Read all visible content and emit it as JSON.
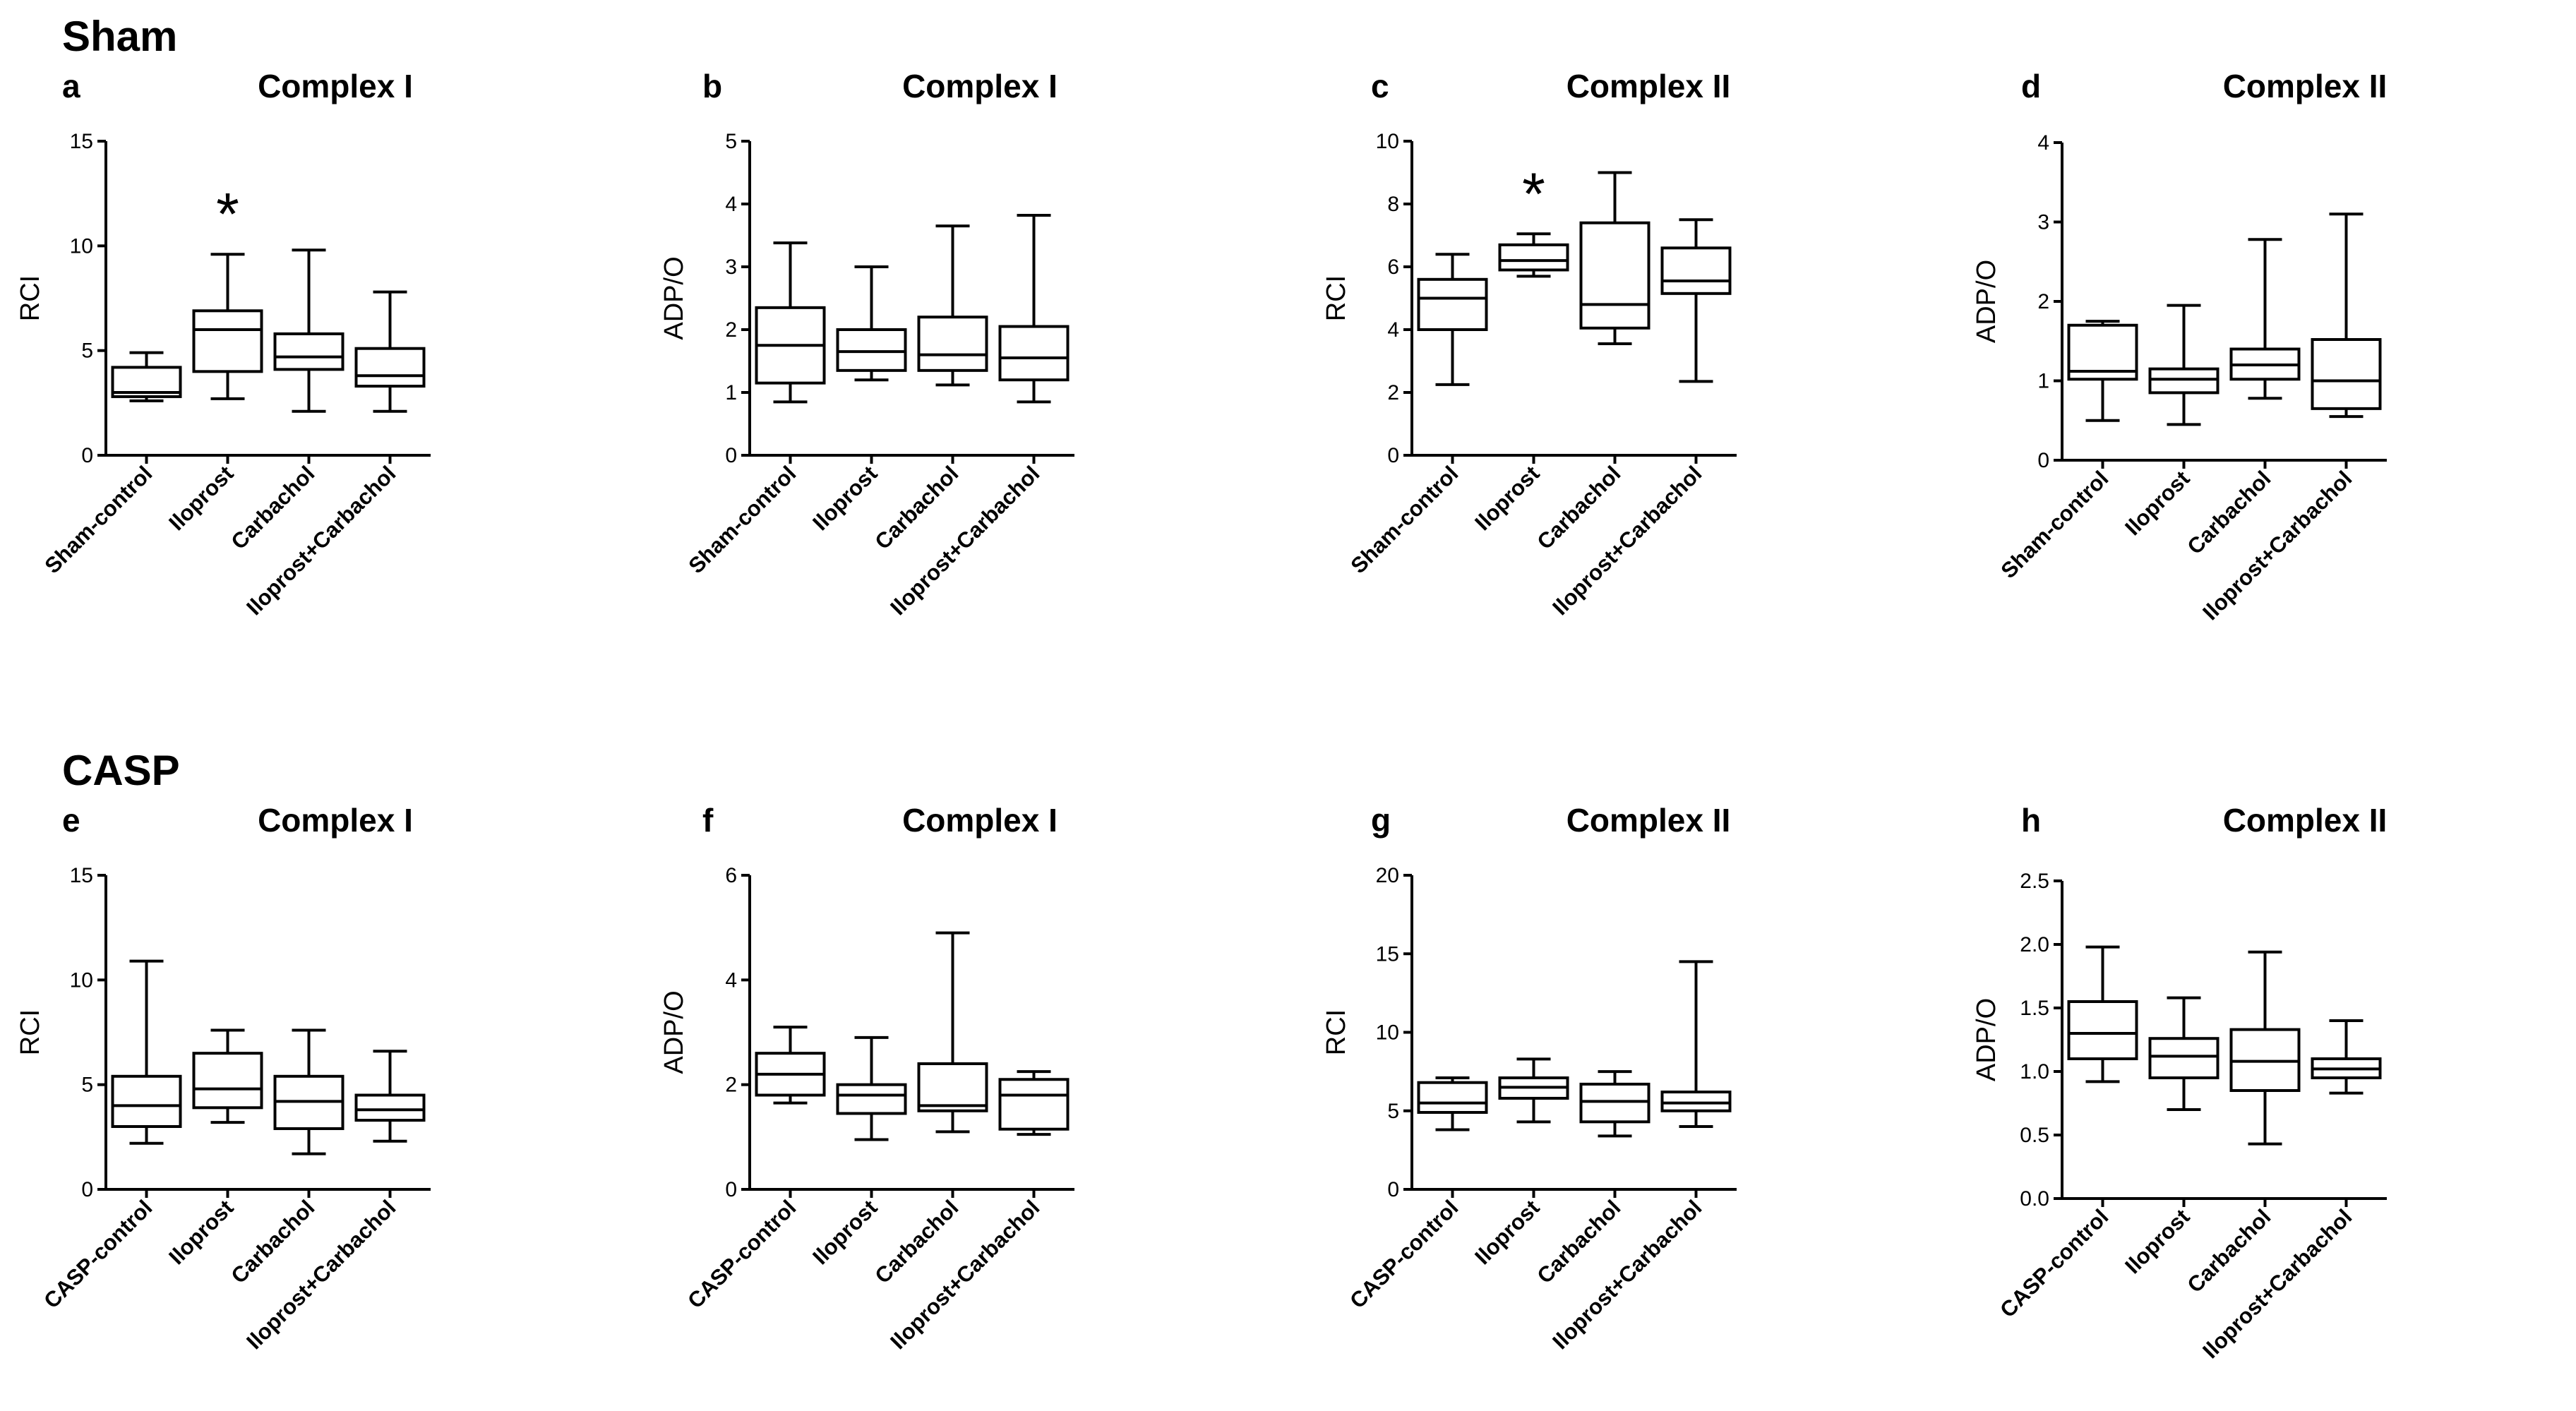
{
  "sections": [
    {
      "label": "Sham"
    },
    {
      "label": "CASP"
    }
  ],
  "chart_data": [
    {
      "panel": "a",
      "type": "boxplot",
      "title": "Complex I",
      "xlabel": "",
      "ylabel": "RCI",
      "ylim": [
        0,
        15
      ],
      "yticks": [
        "0",
        "5",
        "10",
        "15"
      ],
      "categories": [
        "Sham-control",
        "Iloprost",
        "Carbachol",
        "Iloprost+Carbachol"
      ],
      "boxes": [
        {
          "min": 2.6,
          "q1": 2.8,
          "median": 3.0,
          "q3": 4.2,
          "max": 4.9
        },
        {
          "min": 2.7,
          "q1": 4.0,
          "median": 6.0,
          "q3": 6.9,
          "max": 9.6
        },
        {
          "min": 2.1,
          "q1": 4.1,
          "median": 4.7,
          "q3": 5.8,
          "max": 9.8
        },
        {
          "min": 2.1,
          "q1": 3.3,
          "median": 3.8,
          "q3": 5.1,
          "max": 7.8
        }
      ],
      "significance": [
        "",
        "*",
        "",
        ""
      ]
    },
    {
      "panel": "b",
      "type": "boxplot",
      "title": "Complex I",
      "xlabel": "",
      "ylabel": "ADP/O",
      "ylim": [
        0,
        5
      ],
      "yticks": [
        "0",
        "1",
        "2",
        "3",
        "4",
        "5"
      ],
      "categories": [
        "Sham-control",
        "Iloprost",
        "Carbachol",
        "Iloprost+Carbachol"
      ],
      "boxes": [
        {
          "min": 0.85,
          "q1": 1.15,
          "median": 1.75,
          "q3": 2.35,
          "max": 3.38
        },
        {
          "min": 1.2,
          "q1": 1.35,
          "median": 1.65,
          "q3": 2.0,
          "max": 3.0
        },
        {
          "min": 1.12,
          "q1": 1.35,
          "median": 1.6,
          "q3": 2.2,
          "max": 3.65
        },
        {
          "min": 0.85,
          "q1": 1.2,
          "median": 1.55,
          "q3": 2.05,
          "max": 3.82
        }
      ],
      "significance": [
        "",
        "",
        "",
        ""
      ]
    },
    {
      "panel": "c",
      "type": "boxplot",
      "title": "Complex II",
      "xlabel": "",
      "ylabel": "RCI",
      "ylim": [
        0,
        10
      ],
      "yticks": [
        "0",
        "2",
        "4",
        "6",
        "8",
        "10"
      ],
      "categories": [
        "Sham-control",
        "Iloprost",
        "Carbachol",
        "Iloprost+Carbachol"
      ],
      "boxes": [
        {
          "min": 2.25,
          "q1": 4.0,
          "median": 5.0,
          "q3": 5.6,
          "max": 6.4
        },
        {
          "min": 5.7,
          "q1": 5.9,
          "median": 6.2,
          "q3": 6.7,
          "max": 7.05
        },
        {
          "min": 3.55,
          "q1": 4.05,
          "median": 4.8,
          "q3": 7.4,
          "max": 9.0
        },
        {
          "min": 2.35,
          "q1": 5.15,
          "median": 5.55,
          "q3": 6.6,
          "max": 7.5
        }
      ],
      "significance": [
        "",
        "*",
        "",
        ""
      ]
    },
    {
      "panel": "d",
      "type": "boxplot",
      "title": "Complex II",
      "xlabel": "",
      "ylabel": "ADP/O",
      "ylim": [
        0,
        4
      ],
      "yticks": [
        "0",
        "1",
        "2",
        "3",
        "4"
      ],
      "categories": [
        "Sham-control",
        "Iloprost",
        "Carbachol",
        "Iloprost+Carbachol"
      ],
      "boxes": [
        {
          "min": 0.5,
          "q1": 1.02,
          "median": 1.12,
          "q3": 1.7,
          "max": 1.75
        },
        {
          "min": 0.45,
          "q1": 0.85,
          "median": 1.02,
          "q3": 1.15,
          "max": 1.95
        },
        {
          "min": 0.78,
          "q1": 1.02,
          "median": 1.2,
          "q3": 1.4,
          "max": 2.78
        },
        {
          "min": 0.55,
          "q1": 0.65,
          "median": 1.0,
          "q3": 1.52,
          "max": 3.1
        }
      ],
      "significance": [
        "",
        "",
        "",
        ""
      ]
    },
    {
      "panel": "e",
      "type": "boxplot",
      "title": "Complex I",
      "xlabel": "",
      "ylabel": "RCI",
      "ylim": [
        0,
        15
      ],
      "yticks": [
        "0",
        "5",
        "10",
        "15"
      ],
      "categories": [
        "CASP-control",
        "Iloprost",
        "Carbachol",
        "Iloprost+Carbachol"
      ],
      "boxes": [
        {
          "min": 2.2,
          "q1": 3.0,
          "median": 4.0,
          "q3": 5.4,
          "max": 10.9
        },
        {
          "min": 3.2,
          "q1": 3.9,
          "median": 4.8,
          "q3": 6.5,
          "max": 7.6
        },
        {
          "min": 1.7,
          "q1": 2.9,
          "median": 4.2,
          "q3": 5.4,
          "max": 7.6
        },
        {
          "min": 2.3,
          "q1": 3.3,
          "median": 3.8,
          "q3": 4.5,
          "max": 6.6
        }
      ],
      "significance": [
        "",
        "",
        "",
        ""
      ]
    },
    {
      "panel": "f",
      "type": "boxplot",
      "title": "Complex I",
      "xlabel": "",
      "ylabel": "ADP/O",
      "ylim": [
        0,
        6
      ],
      "yticks": [
        "0",
        "2",
        "4",
        "6"
      ],
      "categories": [
        "CASP-control",
        "Iloprost",
        "Carbachol",
        "Iloprost+Carbachol"
      ],
      "boxes": [
        {
          "min": 1.65,
          "q1": 1.8,
          "median": 2.2,
          "q3": 2.6,
          "max": 3.1
        },
        {
          "min": 0.95,
          "q1": 1.45,
          "median": 1.8,
          "q3": 2.0,
          "max": 2.9
        },
        {
          "min": 1.1,
          "q1": 1.5,
          "median": 1.6,
          "q3": 2.4,
          "max": 4.9
        },
        {
          "min": 1.05,
          "q1": 1.15,
          "median": 1.8,
          "q3": 2.1,
          "max": 2.25
        }
      ],
      "significance": [
        "",
        "",
        "",
        ""
      ]
    },
    {
      "panel": "g",
      "type": "boxplot",
      "title": "Complex II",
      "xlabel": "",
      "ylabel": "RCI",
      "ylim": [
        0,
        20
      ],
      "yticks": [
        "0",
        "5",
        "10",
        "15",
        "20"
      ],
      "categories": [
        "CASP-control",
        "Iloprost",
        "Carbachol",
        "Iloprost+Carbachol"
      ],
      "boxes": [
        {
          "min": 3.8,
          "q1": 4.9,
          "median": 5.5,
          "q3": 6.8,
          "max": 7.1
        },
        {
          "min": 4.3,
          "q1": 5.8,
          "median": 6.5,
          "q3": 7.1,
          "max": 8.3
        },
        {
          "min": 3.4,
          "q1": 4.3,
          "median": 5.6,
          "q3": 6.7,
          "max": 7.5
        },
        {
          "min": 4.0,
          "q1": 5.0,
          "median": 5.5,
          "q3": 6.2,
          "max": 14.5
        }
      ],
      "significance": [
        "",
        "",
        "",
        ""
      ]
    },
    {
      "panel": "h",
      "type": "boxplot",
      "title": "Complex II",
      "xlabel": "",
      "ylabel": "ADP/O",
      "ylim": [
        0,
        2.5
      ],
      "yticks": [
        "0.0",
        "0.5",
        "1.0",
        "1.5",
        "2.0",
        "2.5"
      ],
      "categories": [
        "CASP-control",
        "Iloprost",
        "Carbachol",
        "Iloprost+Carbachol"
      ],
      "boxes": [
        {
          "min": 0.92,
          "q1": 1.1,
          "median": 1.3,
          "q3": 1.55,
          "max": 1.98
        },
        {
          "min": 0.7,
          "q1": 0.95,
          "median": 1.12,
          "q3": 1.26,
          "max": 1.58
        },
        {
          "min": 0.43,
          "q1": 0.85,
          "median": 1.08,
          "q3": 1.33,
          "max": 1.94
        },
        {
          "min": 0.83,
          "q1": 0.95,
          "median": 1.02,
          "q3": 1.1,
          "max": 1.4
        }
      ],
      "significance": [
        "",
        "",
        "",
        ""
      ]
    }
  ]
}
